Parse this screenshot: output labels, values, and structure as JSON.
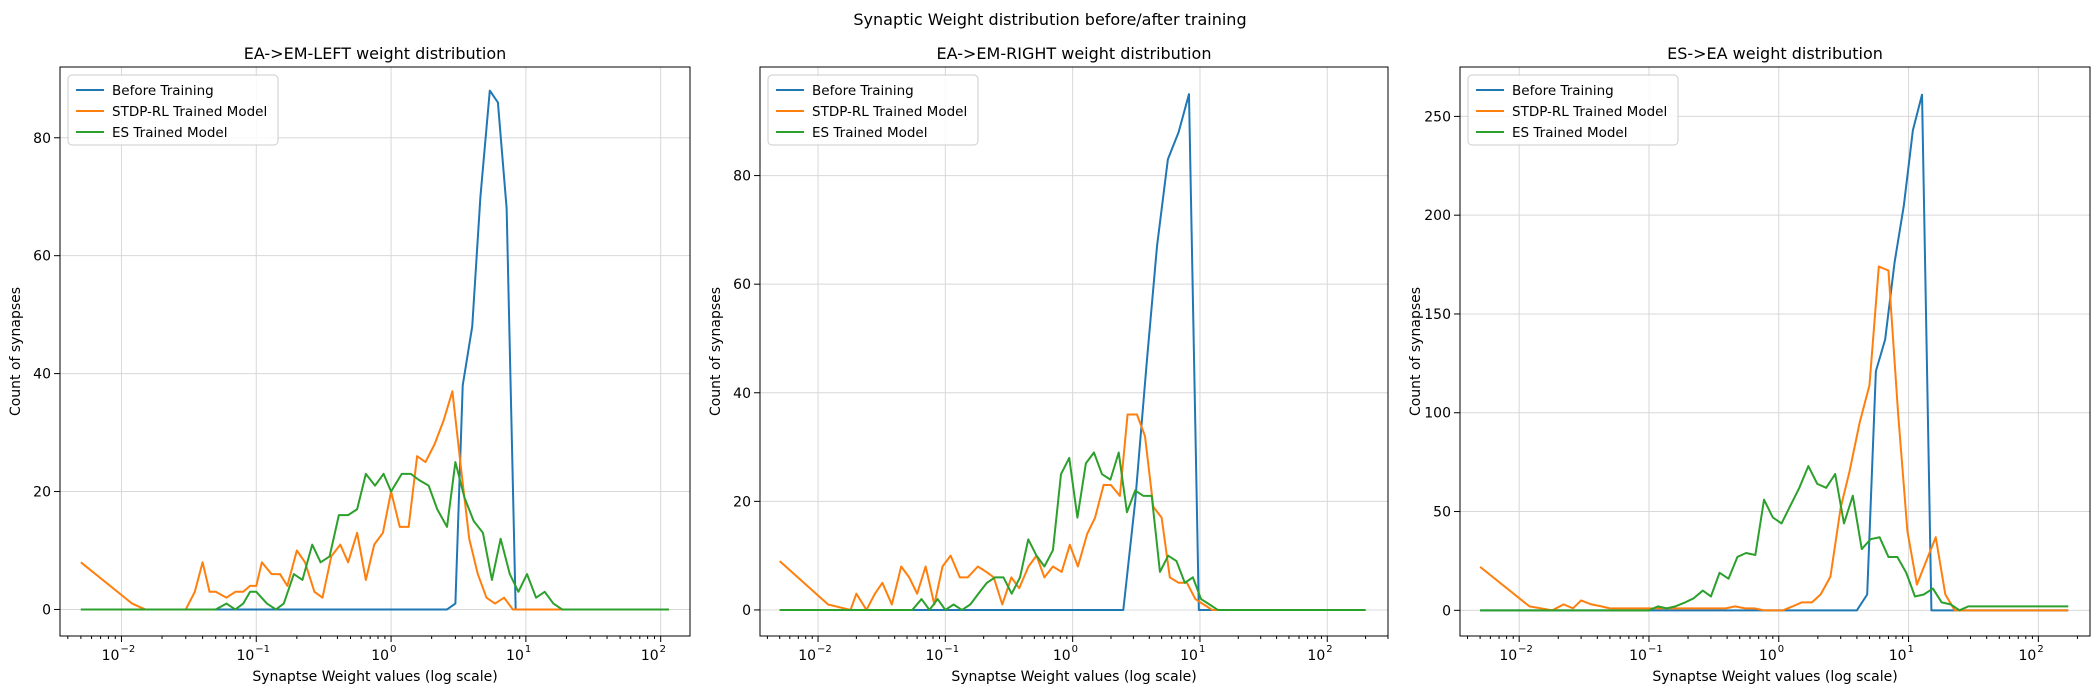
{
  "figure": {
    "title": "Synaptic Weight distribution before/after training"
  },
  "colors": {
    "before": "#1f77b4",
    "stdp": "#ff7f0e",
    "es": "#2ca02c",
    "grid": "#d8d8d8"
  },
  "chart_data": [
    {
      "type": "line",
      "title": "EA->EM-LEFT weight distribution",
      "xlabel": "Synaptse Weight values (log scale)",
      "ylabel": "Count of synapses",
      "xscale": "log",
      "xlim": [
        0.0035,
        165
      ],
      "ylim": [
        -4.5,
        92
      ],
      "yticks": [
        0,
        20,
        40,
        60,
        80
      ],
      "xticks": [
        {
          "value": 0.01,
          "base": "10",
          "exp": "−2"
        },
        {
          "value": 0.1,
          "base": "10",
          "exp": "−1"
        },
        {
          "value": 1,
          "base": "10",
          "exp": "0"
        },
        {
          "value": 10,
          "base": "10",
          "exp": "1"
        },
        {
          "value": 100,
          "base": "10",
          "exp": "2"
        }
      ],
      "grid": true,
      "legend": "upper left",
      "series": [
        {
          "name": "Before Training",
          "color": "#1f77b4",
          "x": [
            0.005,
            2.6,
            3.0,
            3.4,
            4.0,
            4.6,
            5.4,
            6.2,
            7.2,
            8.4,
            9.8,
            11.5,
            20,
            115
          ],
          "y": [
            0,
            0,
            1,
            38,
            48,
            70,
            88,
            86,
            68,
            0,
            0,
            0,
            0,
            0
          ]
        },
        {
          "name": "STDP-RL Trained Model",
          "color": "#ff7f0e",
          "x": [
            0.005,
            0.012,
            0.015,
            0.03,
            0.035,
            0.04,
            0.045,
            0.05,
            0.06,
            0.07,
            0.08,
            0.09,
            0.1,
            0.11,
            0.13,
            0.15,
            0.17,
            0.2,
            0.23,
            0.27,
            0.31,
            0.36,
            0.42,
            0.48,
            0.56,
            0.65,
            0.75,
            0.87,
            1.0,
            1.16,
            1.35,
            1.56,
            1.8,
            2.1,
            2.45,
            2.85,
            3.3,
            3.8,
            4.4,
            5.1,
            5.9,
            6.9,
            8.0,
            9.3,
            10.8,
            12.5,
            14.5,
            16.8,
            19.5,
            22.6,
            26.2,
            30.4,
            35.3,
            41,
            47.5,
            55,
            115
          ],
          "y": [
            8,
            1,
            0,
            0,
            3,
            8,
            3,
            3,
            2,
            3,
            3,
            4,
            4,
            8,
            6,
            6,
            4,
            10,
            8,
            3,
            2,
            9,
            11,
            8,
            13,
            5,
            11,
            13,
            20,
            14,
            14,
            26,
            25,
            28,
            32,
            37,
            24,
            12,
            6,
            2,
            1,
            2,
            0,
            0,
            0,
            0,
            0,
            0,
            0,
            0,
            0,
            0,
            0,
            0,
            0,
            0,
            0
          ]
        },
        {
          "name": "ES Trained Model",
          "color": "#2ca02c",
          "x": [
            0.005,
            0.05,
            0.06,
            0.07,
            0.08,
            0.09,
            0.1,
            0.12,
            0.14,
            0.16,
            0.19,
            0.22,
            0.26,
            0.3,
            0.35,
            0.41,
            0.48,
            0.56,
            0.65,
            0.76,
            0.88,
            1.0,
            1.2,
            1.4,
            1.6,
            1.9,
            2.2,
            2.6,
            3.0,
            3.5,
            4.1,
            4.8,
            5.6,
            6.5,
            7.6,
            8.8,
            10.2,
            11.9,
            13.8,
            16,
            18.6,
            21.6,
            25.1,
            29.1,
            33.8,
            39.3,
            45.6,
            53,
            61.5,
            71.5,
            83,
            96,
            115
          ],
          "y": [
            0,
            0,
            1,
            0,
            1,
            3,
            3,
            1,
            0,
            1,
            6,
            5,
            11,
            8,
            9,
            16,
            16,
            17,
            23,
            21,
            23,
            20,
            23,
            23,
            22,
            21,
            17,
            14,
            25,
            19,
            15,
            13,
            5,
            12,
            6,
            3,
            6,
            2,
            3,
            1,
            0,
            0,
            0,
            0,
            0,
            0,
            0,
            0,
            0,
            0,
            0,
            0,
            0
          ]
        }
      ]
    },
    {
      "type": "line",
      "title": "EA->EM-RIGHT weight distribution",
      "xlabel": "Synaptse Weight values (log scale)",
      "ylabel": "Count of synapses",
      "xscale": "log",
      "xlim": [
        0.0035,
        300
      ],
      "ylim": [
        -4.8,
        100
      ],
      "yticks": [
        0,
        20,
        40,
        60,
        80
      ],
      "xticks": [
        {
          "value": 0.01,
          "base": "10",
          "exp": "−2"
        },
        {
          "value": 0.1,
          "base": "10",
          "exp": "−1"
        },
        {
          "value": 1,
          "base": "10",
          "exp": "0"
        },
        {
          "value": 10,
          "base": "10",
          "exp": "1"
        },
        {
          "value": 100,
          "base": "10",
          "exp": "2"
        }
      ],
      "grid": true,
      "legend": "upper left",
      "series": [
        {
          "name": "Before Training",
          "color": "#1f77b4",
          "x": [
            0.005,
            2.5,
            3.1,
            3.8,
            4.6,
            5.6,
            6.8,
            8.2,
            9.8,
            11.2,
            20,
            200
          ],
          "y": [
            0,
            0,
            20,
            45,
            67,
            83,
            88,
            95,
            0,
            0,
            0,
            0
          ]
        },
        {
          "name": "STDP-RL Trained Model",
          "color": "#ff7f0e",
          "x": [
            0.005,
            0.012,
            0.018,
            0.02,
            0.024,
            0.028,
            0.032,
            0.038,
            0.045,
            0.052,
            0.06,
            0.07,
            0.082,
            0.095,
            0.11,
            0.13,
            0.15,
            0.18,
            0.21,
            0.24,
            0.28,
            0.33,
            0.38,
            0.45,
            0.52,
            0.6,
            0.7,
            0.82,
            0.95,
            1.1,
            1.3,
            1.5,
            1.75,
            2.0,
            2.35,
            2.7,
            3.2,
            3.7,
            4.3,
            5.0,
            5.8,
            6.8,
            7.9,
            9.2,
            10.7,
            12.5,
            14.5,
            16.9,
            19.7,
            23,
            26.8,
            31,
            36,
            42,
            49,
            57,
            66,
            77,
            90,
            105,
            200
          ],
          "y": [
            9,
            1,
            0,
            3,
            0,
            3,
            5,
            1,
            8,
            6,
            3,
            8,
            1,
            8,
            10,
            6,
            6,
            8,
            7,
            6,
            1,
            6,
            4,
            8,
            10,
            6,
            8,
            7,
            12,
            8,
            14,
            17,
            23,
            23,
            21,
            36,
            36,
            32,
            19,
            17,
            6,
            5,
            5,
            2,
            1,
            0,
            0,
            0,
            0,
            0,
            0,
            0,
            0,
            0,
            0,
            0,
            0,
            0,
            0,
            0,
            0
          ]
        },
        {
          "name": "ES Trained Model",
          "color": "#2ca02c",
          "x": [
            0.005,
            0.055,
            0.065,
            0.075,
            0.087,
            0.1,
            0.116,
            0.135,
            0.157,
            0.182,
            0.212,
            0.246,
            0.286,
            0.332,
            0.386,
            0.448,
            0.52,
            0.6,
            0.7,
            0.81,
            0.94,
            1.09,
            1.27,
            1.47,
            1.7,
            1.98,
            2.3,
            2.67,
            3.1,
            3.6,
            4.18,
            4.85,
            5.63,
            6.54,
            7.6,
            8.8,
            10.2,
            11.9,
            13.8,
            16,
            18.6,
            21.6,
            25.1,
            29.1,
            33.8,
            39.3,
            45.6,
            53,
            61.5,
            71.5,
            83,
            96,
            112,
            130,
            151,
            175,
            200
          ],
          "y": [
            0,
            0,
            2,
            0,
            2,
            0,
            1,
            0,
            1,
            3,
            5,
            6,
            6,
            3,
            6,
            13,
            10,
            8,
            11,
            25,
            28,
            17,
            27,
            29,
            25,
            24,
            29,
            18,
            22,
            21,
            21,
            7,
            10,
            9,
            5,
            6,
            2,
            1,
            0,
            0,
            0,
            0,
            0,
            0,
            0,
            0,
            0,
            0,
            0,
            0,
            0,
            0,
            0,
            0,
            0,
            0,
            0
          ]
        }
      ]
    },
    {
      "type": "line",
      "title": "ES->EA weight distribution",
      "xlabel": "Synaptse Weight values (log scale)",
      "ylabel": "Count of synapses",
      "xscale": "log",
      "xlim": [
        0.0035,
        250
      ],
      "ylim": [
        -13,
        275
      ],
      "yticks": [
        0,
        50,
        100,
        150,
        200,
        250
      ],
      "xticks": [
        {
          "value": 0.01,
          "base": "10",
          "exp": "−2"
        },
        {
          "value": 0.1,
          "base": "10",
          "exp": "−1"
        },
        {
          "value": 1,
          "base": "10",
          "exp": "0"
        },
        {
          "value": 10,
          "base": "10",
          "exp": "1"
        },
        {
          "value": 100,
          "base": "10",
          "exp": "2"
        }
      ],
      "grid": true,
      "legend": "upper left",
      "series": [
        {
          "name": "Before Training",
          "color": "#1f77b4",
          "x": [
            0.005,
            4.0,
            4.8,
            5.6,
            6.6,
            7.8,
            9.2,
            10.8,
            12.7,
            15.0,
            20,
            170
          ],
          "y": [
            0,
            0,
            8,
            121,
            137,
            176,
            205,
            243,
            261,
            0,
            0,
            0
          ]
        },
        {
          "name": "STDP-RL Trained Model",
          "color": "#ff7f0e",
          "x": [
            0.005,
            0.012,
            0.018,
            0.022,
            0.026,
            0.03,
            0.036,
            0.043,
            0.05,
            0.06,
            0.07,
            0.085,
            0.1,
            0.12,
            0.14,
            0.17,
            0.2,
            0.24,
            0.28,
            0.33,
            0.39,
            0.46,
            0.55,
            0.65,
            0.77,
            0.91,
            1.08,
            1.28,
            1.5,
            1.8,
            2.1,
            2.5,
            3.0,
            3.5,
            4.2,
            5.0,
            5.9,
            7.0,
            8.3,
            9.8,
            11.6,
            13.7,
            16.2,
            19.2,
            22.7,
            26.9,
            31.8,
            37.6,
            44.5,
            52.7,
            62.4,
            73.8,
            87.3,
            103,
            122,
            145,
            170
          ],
          "y": [
            22,
            2,
            0,
            3,
            1,
            5,
            3,
            2,
            1,
            1,
            1,
            1,
            1,
            1,
            1,
            1,
            1,
            1,
            1,
            1,
            1,
            2,
            1,
            1,
            0,
            0,
            0,
            2,
            4,
            4,
            8,
            17,
            52,
            70,
            95,
            114,
            174,
            172,
            100,
            40,
            13,
            25,
            37,
            8,
            0,
            0,
            0,
            0,
            0,
            0,
            0,
            0,
            0,
            0,
            0,
            0,
            0
          ]
        },
        {
          "name": "ES Trained Model",
          "color": "#2ca02c",
          "x": [
            0.005,
            0.1,
            0.117,
            0.137,
            0.16,
            0.19,
            0.22,
            0.26,
            0.3,
            0.35,
            0.41,
            0.48,
            0.56,
            0.66,
            0.77,
            0.9,
            1.05,
            1.23,
            1.44,
            1.69,
            1.98,
            2.32,
            2.72,
            3.18,
            3.72,
            4.36,
            5.1,
            5.98,
            7.0,
            8.2,
            9.6,
            11.2,
            13.1,
            15.4,
            18.0,
            21.1,
            24.7,
            28.9,
            33.9,
            39.7,
            46.5,
            54.4,
            63.7,
            74.6,
            87.4,
            102,
            120,
            140,
            170
          ],
          "y": [
            0,
            0,
            2,
            1,
            2,
            4,
            6,
            10,
            7,
            19,
            16,
            27,
            29,
            28,
            56,
            47,
            44,
            53,
            62,
            73,
            64,
            62,
            69,
            44,
            58,
            31,
            36,
            37,
            27,
            27,
            19,
            7,
            8,
            11,
            4,
            3,
            0,
            2,
            2,
            2,
            2,
            2,
            2,
            2,
            2,
            2,
            2,
            2,
            2
          ]
        }
      ]
    }
  ]
}
